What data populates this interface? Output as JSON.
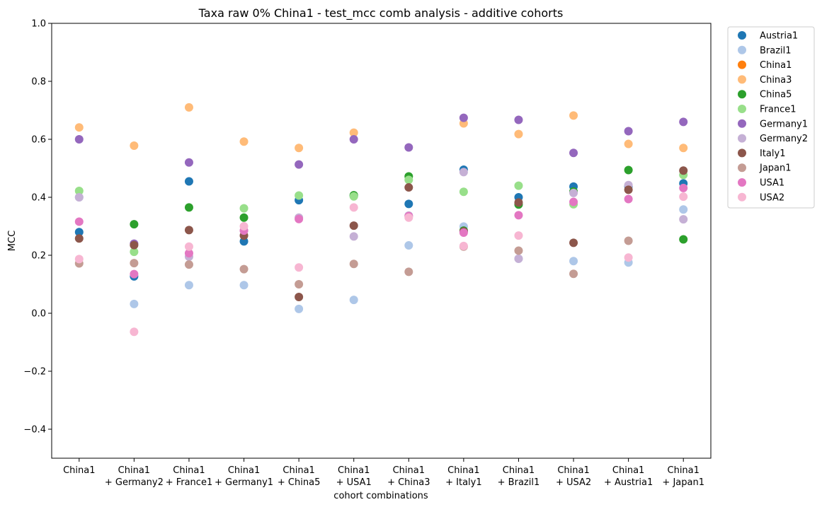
{
  "chart_data": {
    "type": "scatter",
    "title": "Taxa raw 0% China1 - test_mcc comb analysis - additive cohorts",
    "xlabel": "cohort combinations",
    "ylabel": "MCC",
    "ylim": [
      -0.5,
      1.0
    ],
    "yticks": [
      -0.4,
      -0.2,
      0.0,
      0.2,
      0.4,
      0.6,
      0.8,
      1.0
    ],
    "ytick_labels": [
      "−0.4",
      "−0.2",
      "0.0",
      "0.2",
      "0.4",
      "0.6",
      "0.8",
      "1.0"
    ],
    "grid": false,
    "legend_position": "outside-right",
    "categories": [
      [
        "China1"
      ],
      [
        "China1",
        "+ Germany2"
      ],
      [
        "China1",
        "+ France1"
      ],
      [
        "China1",
        "+ Germany1"
      ],
      [
        "China1",
        "+ China5"
      ],
      [
        "China1",
        "+ USA1"
      ],
      [
        "China1",
        "+ China3"
      ],
      [
        "China1",
        "+ Italy1"
      ],
      [
        "China1",
        "+ Brazil1"
      ],
      [
        "China1",
        "+ USA2"
      ],
      [
        "China1",
        "+ Austria1"
      ],
      [
        "China1",
        "+ Japan1"
      ]
    ],
    "series": [
      {
        "name": "Austria1",
        "color": "#1f77b4",
        "values": [
          0.28,
          0.127,
          0.455,
          0.248,
          0.39,
          0.405,
          0.377,
          0.495,
          0.4,
          0.437,
          0.438,
          0.448
        ]
      },
      {
        "name": "Brazil1",
        "color": "#aec7e8",
        "values": [
          0.4,
          0.032,
          0.097,
          0.097,
          0.015,
          0.046,
          0.234,
          0.299,
          0.188,
          0.18,
          0.175,
          0.358
        ]
      },
      {
        "name": "China1",
        "color": "#ff7f0e",
        "values": [
          null,
          null,
          null,
          null,
          null,
          null,
          null,
          null,
          null,
          null,
          null,
          null
        ]
      },
      {
        "name": "China3",
        "color": "#ffbb78",
        "values": [
          0.641,
          0.578,
          0.71,
          0.592,
          0.57,
          0.623,
          null,
          0.655,
          0.618,
          0.682,
          0.584,
          0.57
        ]
      },
      {
        "name": "China5",
        "color": "#2ca02c",
        "values": [
          null,
          0.307,
          0.365,
          0.33,
          null,
          0.407,
          0.472,
          0.285,
          0.375,
          0.42,
          0.494,
          0.255
        ]
      },
      {
        "name": "France1",
        "color": "#98df8a",
        "values": [
          0.422,
          0.212,
          null,
          0.362,
          0.406,
          0.403,
          0.46,
          0.419,
          0.44,
          0.376,
          null,
          0.477
        ]
      },
      {
        "name": "Germany1",
        "color": "#9467bd",
        "values": [
          0.6,
          0.24,
          0.52,
          null,
          0.513,
          0.6,
          0.572,
          0.674,
          0.667,
          0.553,
          0.628,
          0.66
        ]
      },
      {
        "name": "Germany2",
        "color": "#c5b0d5",
        "values": [
          0.4,
          null,
          0.195,
          0.285,
          0.33,
          0.265,
          0.337,
          0.487,
          0.188,
          0.415,
          0.442,
          0.324
        ]
      },
      {
        "name": "Italy1",
        "color": "#8c564b",
        "values": [
          0.258,
          0.235,
          0.287,
          0.268,
          0.056,
          0.302,
          0.434,
          0.282,
          0.382,
          0.243,
          0.426,
          0.492
        ]
      },
      {
        "name": "Japan1",
        "color": "#c49c94",
        "values": [
          0.172,
          0.173,
          0.168,
          0.152,
          0.1,
          0.17,
          0.143,
          0.23,
          0.216,
          0.136,
          0.25,
          null
        ]
      },
      {
        "name": "USA1",
        "color": "#e377c2",
        "values": [
          0.316,
          0.135,
          0.207,
          0.285,
          0.325,
          null,
          0.335,
          0.278,
          0.338,
          0.384,
          0.394,
          0.432
        ]
      },
      {
        "name": "USA2",
        "color": "#f7b6d2",
        "values": [
          0.187,
          -0.064,
          0.23,
          0.3,
          0.158,
          0.365,
          0.33,
          0.232,
          0.268,
          null,
          0.192,
          0.402
        ]
      }
    ]
  }
}
